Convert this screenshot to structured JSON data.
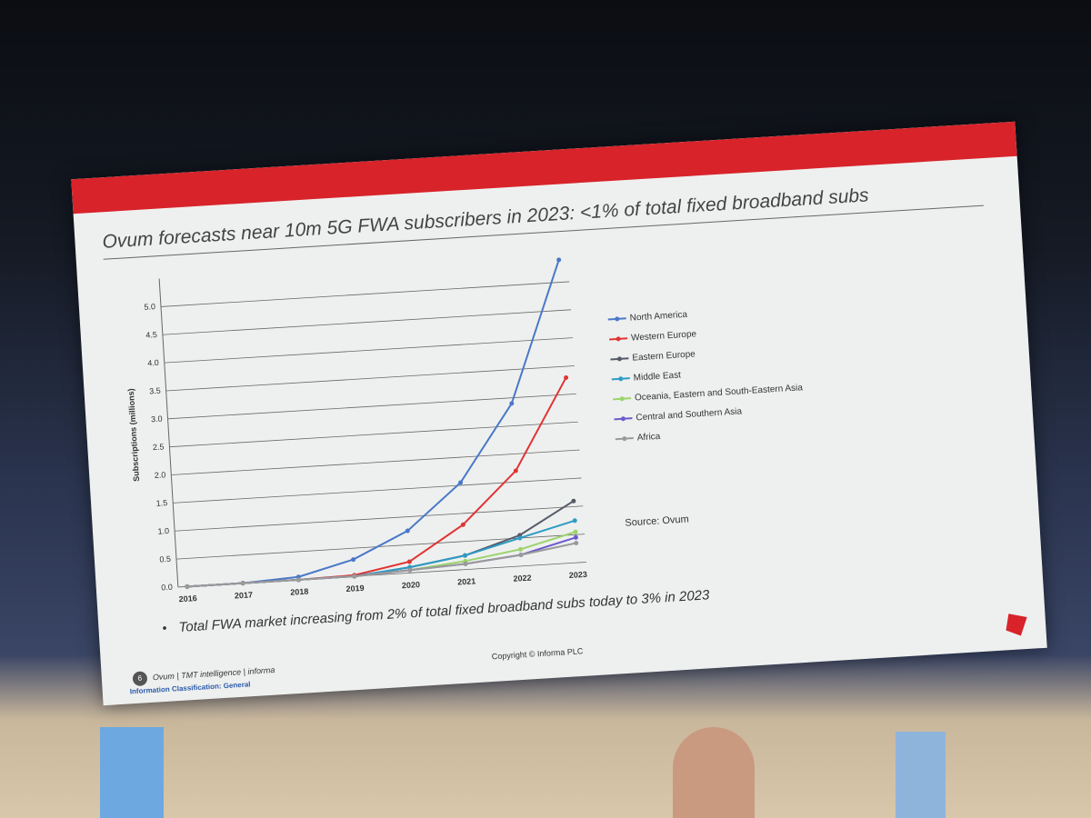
{
  "chart_data": {
    "type": "line",
    "title": "Ovum forecasts near 10m 5G FWA subscribers in 2023: <1% of total fixed broadband subs",
    "y_label": "Subscriptions (millions)",
    "source": "Source: Ovum",
    "categories": [
      "2016",
      "2017",
      "2018",
      "2019",
      "2020",
      "2021",
      "2022",
      "2023"
    ],
    "ylim": [
      0,
      5.5
    ],
    "yticks": [
      {
        "value": 0,
        "label": "0.0"
      },
      0.5,
      {
        "value": 1,
        "label": "1.0"
      },
      1.5,
      {
        "value": 2,
        "label": "2.0"
      },
      2.5,
      {
        "value": 3,
        "label": "3.0"
      },
      3.5,
      {
        "value": 4,
        "label": "4.0"
      },
      4.5,
      {
        "value": 5,
        "label": "5.0"
      }
    ],
    "grid": true,
    "legend": "right",
    "series": [
      {
        "name": "North America",
        "color": "#4a78c8",
        "values": [
          0,
          0,
          0.05,
          0.3,
          0.75,
          1.55,
          2.9,
          5.4
        ]
      },
      {
        "name": "Western Europe",
        "color": "#e03434",
        "values": [
          0,
          0,
          0,
          0.02,
          0.2,
          0.8,
          1.7,
          3.3
        ]
      },
      {
        "name": "Eastern Europe",
        "color": "#555a66",
        "values": [
          0,
          0,
          0,
          0,
          0.1,
          0.25,
          0.55,
          1.1
        ]
      },
      {
        "name": "Middle East",
        "color": "#2e9bc4",
        "values": [
          0,
          0,
          0,
          0,
          0.1,
          0.25,
          0.5,
          0.75
        ]
      },
      {
        "name": "Oceania, Eastern and South-Eastern Asia",
        "color": "#9bd36a",
        "values": [
          0,
          0,
          0,
          0,
          0.05,
          0.15,
          0.3,
          0.55
        ]
      },
      {
        "name": "Central and Southern Asia",
        "color": "#6a5acd",
        "values": [
          0,
          0,
          0,
          0,
          0.05,
          0.1,
          0.2,
          0.45
        ]
      },
      {
        "name": "Africa",
        "color": "#9a9a9a",
        "values": [
          0,
          0,
          0,
          0,
          0.05,
          0.1,
          0.2,
          0.35
        ]
      }
    ]
  },
  "slide": {
    "bullet": "Total FWA market increasing from 2% of total fixed broadband subs today to 3% in 2023",
    "page_number": "6",
    "brand": "Ovum | TMT intelligence | informa",
    "classification": "Information Classification: General",
    "copyright": "Copyright © Informa PLC"
  }
}
